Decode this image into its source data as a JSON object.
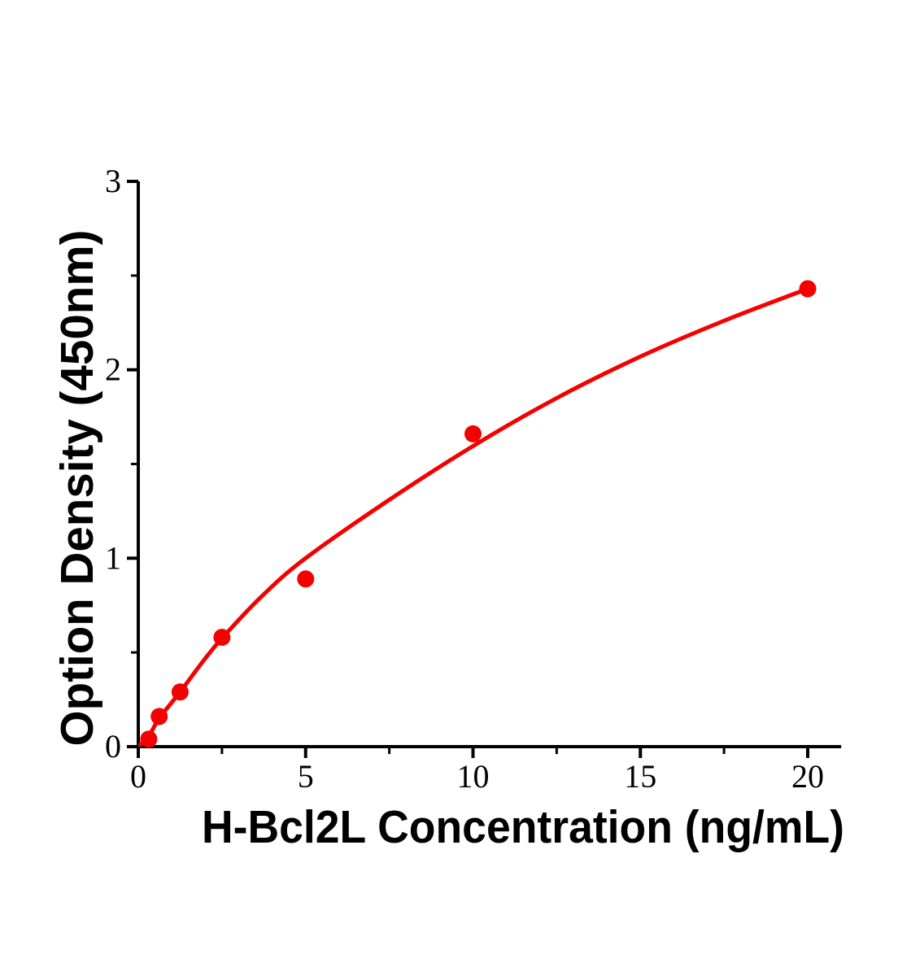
{
  "chart_data": {
    "type": "scatter",
    "title": "",
    "xlabel": "H-Bcl2L Concentration (ng/mL)",
    "ylabel": "Option Density (450nm)",
    "xlim": [
      0,
      21
    ],
    "ylim": [
      0,
      3
    ],
    "x_major_ticks": [
      0,
      5,
      10,
      15,
      20
    ],
    "x_minor_ticks": [
      2.5,
      7.5,
      12.5,
      17.5
    ],
    "y_major_ticks": [
      0,
      1,
      2,
      3
    ],
    "y_minor_ticks": [
      0.5,
      1.5,
      2.5
    ],
    "grid": false,
    "legend_position": "none",
    "series": [
      {
        "name": "standard-points",
        "type": "scatter",
        "x": [
          0.313,
          0.625,
          1.25,
          2.5,
          5,
          10,
          20
        ],
        "y": [
          0.04,
          0.16,
          0.29,
          0.58,
          0.89,
          1.66,
          2.43
        ]
      },
      {
        "name": "fit-curve",
        "type": "line",
        "x": [
          0.05,
          0.313,
          0.625,
          1.25,
          1.9,
          2.5,
          3.7,
          5,
          7.5,
          10,
          12.5,
          15,
          17.5,
          20
        ],
        "y": [
          0.01,
          0.055,
          0.15,
          0.29,
          0.445,
          0.575,
          0.8,
          1.0,
          1.31,
          1.595,
          1.85,
          2.07,
          2.26,
          2.43
        ]
      }
    ],
    "colors": {
      "series": "#f40000",
      "axis": "#000000",
      "background": "#ffffff"
    }
  }
}
